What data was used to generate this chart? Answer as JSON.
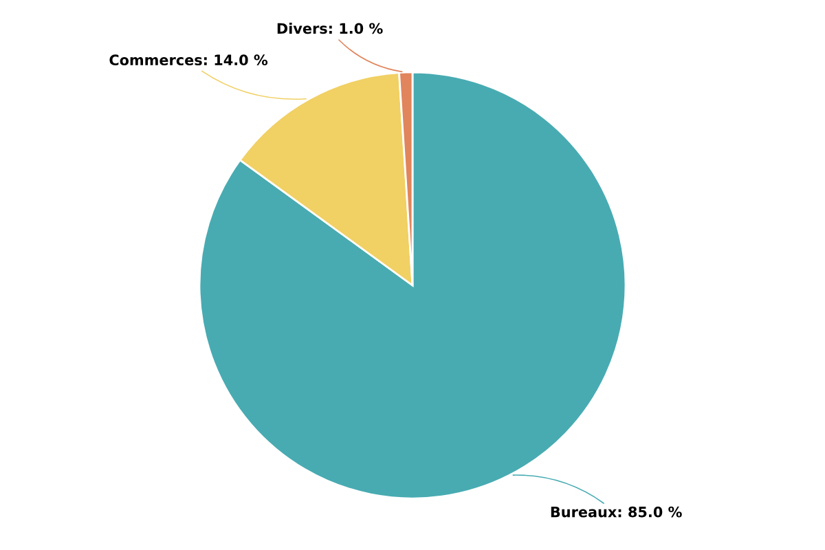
{
  "chart_data": {
    "type": "pie",
    "categories": [
      "Bureaux",
      "Commerces",
      "Divers"
    ],
    "values": [
      85,
      14,
      1
    ],
    "colors": [
      "#48abb2",
      "#f1d064",
      "#e0855c"
    ],
    "value_labels": [
      "85.0 %",
      "14.0 %",
      "1.0 %"
    ],
    "legend": false
  }
}
